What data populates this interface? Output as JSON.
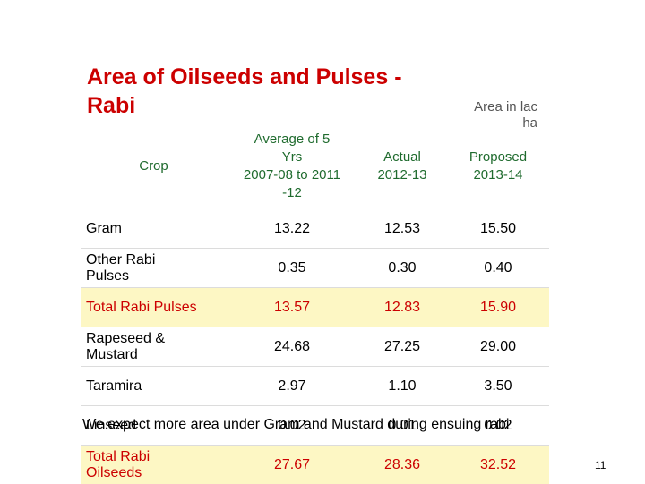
{
  "title_line1": "Area of Oilseeds and Pulses -",
  "title_line2": "Rabi",
  "units_line1": "Area in lac",
  "units_line2": "ha",
  "columns": {
    "crop": "Crop",
    "avg_line1": "Average of 5",
    "avg_line2": "Yrs",
    "avg_line3": "2007-08 to 2011",
    "avg_line4": "-12",
    "actual_line1": "Actual",
    "actual_line2": "2012-13",
    "proposed_line1": "Proposed",
    "proposed_line2": "2013-14"
  },
  "rows": [
    {
      "crop": "Gram",
      "avg": "13.22",
      "actual": "12.53",
      "proposed": "15.50"
    },
    {
      "crop_line1": "Other Rabi",
      "crop_line2": "Pulses",
      "avg": "0.35",
      "actual": "0.30",
      "proposed": "0.40"
    },
    {
      "crop": "Total Rabi Pulses",
      "avg": "13.57",
      "actual": "12.83",
      "proposed": "15.90"
    },
    {
      "crop_line1": "Rapeseed &",
      "crop_line2": "Mustard",
      "avg": "24.68",
      "actual": "27.25",
      "proposed": "29.00"
    },
    {
      "crop": "Taramira",
      "avg": "2.97",
      "actual": "1.10",
      "proposed": "3.50"
    },
    {
      "crop": "Linseed",
      "avg": "0.02",
      "actual": "0.01",
      "proposed": "0.02"
    },
    {
      "crop_line1": "Total Rabi",
      "crop_line2": "Oilseeds",
      "avg": "27.67",
      "actual": "28.36",
      "proposed": "32.52"
    }
  ],
  "note": "We expect more area under Gram and Mustard during ensuing rabi",
  "page_number": "11",
  "colors": {
    "title": "#cc0000",
    "header_text": "#1f6b2e",
    "highlight_bg": "#fdf7c4",
    "highlight_text": "#cc0000"
  }
}
